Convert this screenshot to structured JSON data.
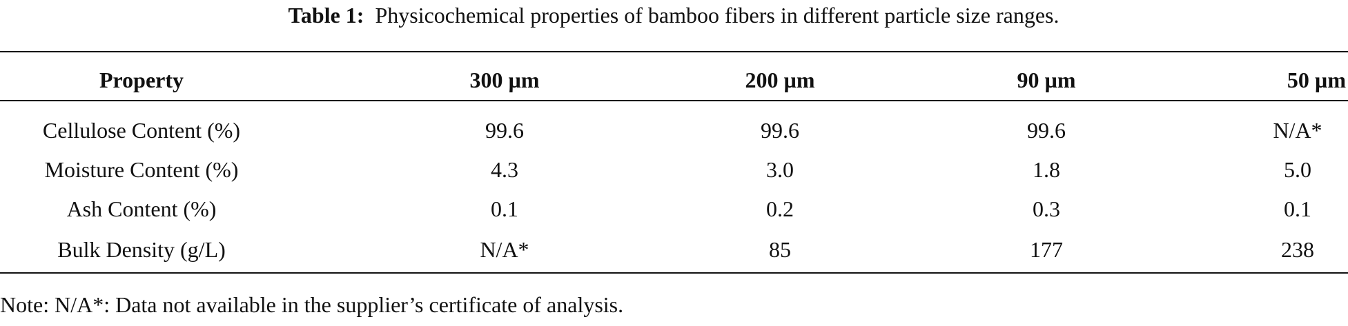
{
  "caption": {
    "label": "Table 1:",
    "text": "Physicochemical properties of bamboo fibers in different particle size ranges."
  },
  "table": {
    "header": [
      "Property",
      "300 µm",
      "200 µm",
      "90 µm",
      "50 µm"
    ],
    "rows": [
      [
        "Cellulose Content (%)",
        "99.6",
        "99.6",
        "99.6",
        "N/A*"
      ],
      [
        "Moisture Content (%)",
        "4.3",
        "3.0",
        "1.8",
        "5.0"
      ],
      [
        "Ash Content (%)",
        "0.1",
        "0.2",
        "0.3",
        "0.1"
      ],
      [
        "Bulk Density (g/L)",
        "N/A*",
        "85",
        "177",
        "238"
      ]
    ]
  },
  "note": "Note: N/A*: Data not available in the supplier’s certificate of analysis."
}
